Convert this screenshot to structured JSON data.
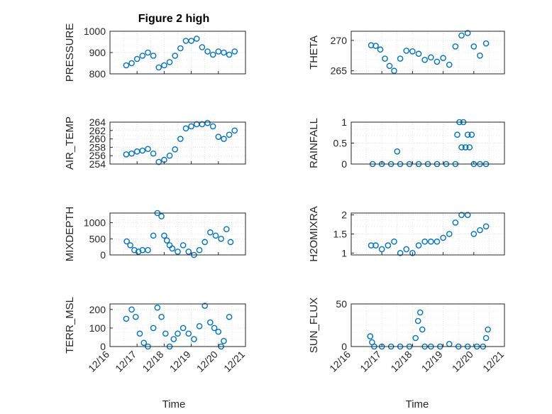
{
  "figure_title": "Figure 2 high",
  "colors": {
    "marker": "#0072BD",
    "axis": "#262626",
    "grid": "#dcdcdc",
    "box": "#ffffff"
  },
  "xlabels": {
    "left": "Time",
    "right": "Time"
  },
  "chart_data": [
    {
      "id": "pressure",
      "type": "scatter",
      "ylabel": "PRESSURE",
      "ylim": [
        800,
        1000
      ],
      "yticks": [
        800,
        900,
        1000
      ],
      "xlim": [
        12.16,
        12.21
      ],
      "x_tick_labels": [],
      "series": [
        {
          "x": [
            12.166,
            12.168,
            12.17,
            12.172,
            12.174,
            12.176,
            12.178,
            12.18,
            12.182,
            12.184,
            12.186,
            12.188,
            12.19,
            12.192,
            12.194,
            12.196,
            12.198,
            12.2,
            12.202,
            12.204,
            12.206
          ],
          "y": [
            840,
            850,
            870,
            885,
            900,
            885,
            830,
            840,
            855,
            885,
            920,
            955,
            955,
            965,
            925,
            905,
            890,
            905,
            900,
            890,
            905
          ]
        }
      ]
    },
    {
      "id": "theta",
      "type": "scatter",
      "ylabel": "THETA",
      "ylim": [
        264.5,
        271.5
      ],
      "yticks": [
        265,
        270
      ],
      "xlim": [
        12.16,
        12.21
      ],
      "x_tick_labels": [],
      "series": [
        {
          "x": [
            12.1665,
            12.168,
            12.1695,
            12.171,
            12.1725,
            12.174,
            12.176,
            12.178,
            12.18,
            12.182,
            12.184,
            12.186,
            12.188,
            12.19,
            12.192,
            12.194,
            12.196,
            12.198,
            12.2,
            12.202,
            12.204
          ],
          "y": [
            269.2,
            269.1,
            268.5,
            267.0,
            265.8,
            265.0,
            267.0,
            268.3,
            268.2,
            267.8,
            266.8,
            267.2,
            266.5,
            267.1,
            266.0,
            269.0,
            270.8,
            271.2,
            269.0,
            267.5,
            269.5
          ]
        }
      ]
    },
    {
      "id": "air_temp",
      "type": "scatter",
      "ylabel": "AIR_TEMP",
      "ylim": [
        254,
        264
      ],
      "yticks": [
        254,
        256,
        258,
        260,
        262,
        264
      ],
      "xlim": [
        12.16,
        12.21
      ],
      "x_tick_labels": [],
      "series": [
        {
          "x": [
            12.166,
            12.168,
            12.17,
            12.172,
            12.174,
            12.176,
            12.178,
            12.18,
            12.182,
            12.184,
            12.186,
            12.188,
            12.19,
            12.192,
            12.194,
            12.196,
            12.198,
            12.2,
            12.202,
            12.204,
            12.206
          ],
          "y": [
            256.3,
            256.5,
            257.0,
            257.2,
            257.6,
            256.5,
            254.5,
            255.0,
            256.0,
            257.5,
            260.0,
            262.5,
            263.0,
            263.5,
            263.5,
            263.8,
            263.0,
            260.5,
            260.0,
            261.0,
            262.0
          ]
        }
      ]
    },
    {
      "id": "rainfall",
      "type": "scatter",
      "ylabel": "RAINFALL",
      "ylim": [
        0,
        1
      ],
      "yticks": [
        0,
        0.5,
        1
      ],
      "xlim": [
        12.16,
        12.21
      ],
      "x_tick_labels": [],
      "series": [
        {
          "x": [
            12.167,
            12.17,
            12.173,
            12.176,
            12.179,
            12.182,
            12.185,
            12.188,
            12.191,
            12.194,
            12.1946,
            12.1953,
            12.196,
            12.1966,
            12.1973,
            12.198,
            12.1986,
            12.1993,
            12.2,
            12.202,
            12.204,
            12.175
          ],
          "y": [
            0,
            0,
            0,
            0,
            0,
            0,
            0,
            0,
            0,
            0,
            0.7,
            1,
            0.4,
            1,
            0.4,
            0.7,
            0.4,
            0.7,
            0,
            0,
            0,
            0.3
          ]
        }
      ]
    },
    {
      "id": "mixdepth",
      "type": "scatter",
      "ylabel": "MIXDEPTH",
      "ylim": [
        0,
        1300
      ],
      "yticks": [
        0,
        500,
        1000
      ],
      "xlim": [
        12.16,
        12.21
      ],
      "x_tick_labels": [],
      "series": [
        {
          "x": [
            12.1662,
            12.1675,
            12.169,
            12.1705,
            12.172,
            12.174,
            12.176,
            12.1775,
            12.179,
            12.18,
            12.181,
            12.182,
            12.183,
            12.185,
            12.187,
            12.189,
            12.191,
            12.193,
            12.195,
            12.197,
            12.199,
            12.201,
            12.203,
            12.2045
          ],
          "y": [
            420,
            300,
            150,
            100,
            150,
            150,
            600,
            1300,
            1200,
            600,
            450,
            300,
            200,
            100,
            300,
            100,
            0,
            150,
            400,
            700,
            600,
            500,
            800,
            400
          ]
        }
      ]
    },
    {
      "id": "h2omixra",
      "type": "scatter",
      "ylabel": "H2OMIXRA",
      "ylim": [
        0.95,
        2.05
      ],
      "yticks": [
        1,
        1.5,
        2
      ],
      "xlim": [
        12.16,
        12.21
      ],
      "x_tick_labels": [],
      "series": [
        {
          "x": [
            12.1665,
            12.168,
            12.17,
            12.172,
            12.174,
            12.176,
            12.178,
            12.18,
            12.182,
            12.184,
            12.186,
            12.188,
            12.19,
            12.192,
            12.194,
            12.196,
            12.198,
            12.2,
            12.202,
            12.204
          ],
          "y": [
            1.2,
            1.2,
            1.1,
            1.2,
            1.3,
            1.0,
            1.1,
            1.0,
            1.2,
            1.3,
            1.3,
            1.3,
            1.4,
            1.5,
            1.8,
            2.0,
            2.0,
            1.5,
            1.6,
            1.7
          ]
        }
      ]
    },
    {
      "id": "terr_msl",
      "type": "scatter",
      "ylabel": "TERR_MSL",
      "ylim": [
        0,
        230
      ],
      "yticks": [
        0,
        100,
        200
      ],
      "xlim": [
        12.16,
        12.21
      ],
      "x_tick_labels": [
        "12/16",
        "12/17",
        "12/18",
        "12/19",
        "12/20",
        "12/21"
      ],
      "series": [
        {
          "x": [
            12.166,
            12.168,
            12.1695,
            12.171,
            12.1725,
            12.174,
            12.176,
            12.1775,
            12.179,
            12.1805,
            12.182,
            12.1835,
            12.185,
            12.187,
            12.189,
            12.191,
            12.193,
            12.195,
            12.197,
            12.1985,
            12.2,
            12.201,
            12.202,
            12.204
          ],
          "y": [
            150,
            200,
            160,
            70,
            20,
            0,
            100,
            210,
            160,
            70,
            0,
            40,
            70,
            100,
            70,
            40,
            110,
            220,
            130,
            100,
            80,
            0,
            30,
            160
          ]
        }
      ]
    },
    {
      "id": "sun_flux",
      "type": "scatter",
      "ylabel": "SUN_FLUX",
      "ylim": [
        0,
        50
      ],
      "yticks": [
        0,
        50
      ],
      "xlim": [
        12.16,
        12.21
      ],
      "x_tick_labels": [
        "12/16",
        "12/17",
        "12/18",
        "12/19",
        "12/20",
        "12/21"
      ],
      "series": [
        {
          "x": [
            12.1662,
            12.1668,
            12.1675,
            12.17,
            12.173,
            12.176,
            12.179,
            12.181,
            12.1818,
            12.1825,
            12.1832,
            12.184,
            12.186,
            12.189,
            12.192,
            12.195,
            12.198,
            12.201,
            12.203,
            12.204,
            12.2046
          ],
          "y": [
            12,
            5,
            0,
            0,
            0,
            0,
            0,
            10,
            30,
            40,
            20,
            0,
            0,
            0,
            3,
            0,
            0,
            0,
            0,
            10,
            20
          ]
        }
      ]
    }
  ]
}
